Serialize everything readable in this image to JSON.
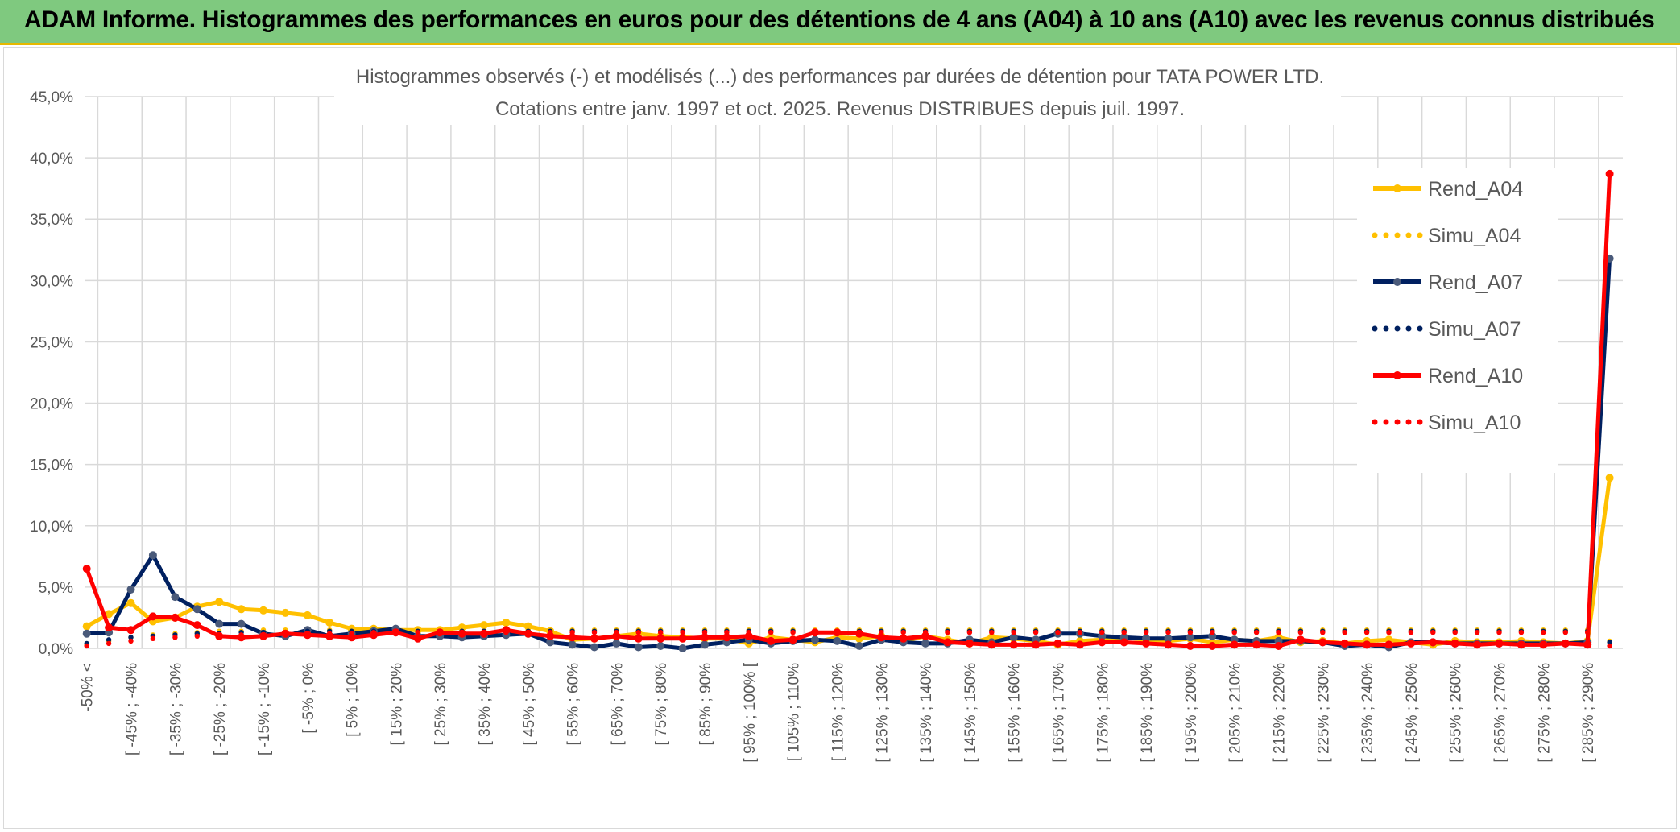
{
  "banner": {
    "title": "ADAM Informe. Histogrammes des performances en euros pour des détentions de 4 ans (A04) à 10 ans (A10) avec les revenus connus distribués"
  },
  "colors": {
    "banner_bg": "#7fc97f",
    "a04": "#ffc000",
    "a07": "#002060",
    "a10": "#ff0000",
    "a07_marker": "#4a5a7a",
    "grid": "#d9d9d9",
    "text": "#595959"
  },
  "chart_data": {
    "type": "line",
    "title": "Histogrammes observés (-) et modélisés (...) des performances par durées de détention pour TATA POWER LTD.",
    "subtitle": "Cotations entre janv. 1997 et oct. 2025. Revenus DISTRIBUES depuis juil. 1997.",
    "ylim": [
      0,
      45
    ],
    "yticks": [
      "0,0%",
      "5,0%",
      "10,0%",
      "15,0%",
      "20,0%",
      "25,0%",
      "30,0%",
      "35,0%",
      "40,0%",
      "45,0%"
    ],
    "xtick_labels": [
      "-50% <",
      "[ -45% ; -40%",
      "[ -35% ; -30%",
      "[ -25% ; -20%",
      "[ -15% ; -10%",
      "[ -5% ; 0%",
      "[ 5% ; 10%",
      "[ 15% ; 20%",
      "[ 25% ; 30%",
      "[ 35% ; 40%",
      "[ 45% ; 50%",
      "[ 55% ; 60%",
      "[ 65% ; 70%",
      "[ 75% ; 80%",
      "[ 85% ; 90%",
      "[ 95% ; 100% [",
      "[ 105% ; 110%",
      "[ 115% ; 120%",
      "[ 125% ; 130%",
      "[ 135% ; 140%",
      "[ 145% ; 150%",
      "[ 155% ; 160%",
      "[ 165% ; 170%",
      "[ 175% ; 180%",
      "[ 185% ; 190%",
      "[ 195% ; 200%",
      "[ 205% ; 210%",
      "[ 215% ; 220%",
      "[ 225% ; 230%",
      "[ 235% ; 240%",
      "[ 245% ; 250%",
      "[ 255% ; 260%",
      "[ 265% ; 270%",
      "[ 275% ; 280%",
      "[ 285% ; 290%"
    ],
    "n_categories": 70,
    "series": [
      {
        "name": "Rend_A04",
        "style": "solid",
        "color": "#ffc000",
        "values": [
          1.8,
          2.8,
          3.7,
          2.2,
          2.5,
          3.4,
          3.8,
          3.2,
          3.1,
          2.9,
          2.7,
          2.1,
          1.6,
          1.6,
          1.5,
          1.5,
          1.5,
          1.7,
          1.9,
          2.1,
          1.8,
          1.4,
          0.7,
          0.8,
          1.0,
          1.2,
          1.0,
          0.9,
          0.8,
          0.8,
          0.4,
          0.9,
          0.7,
          0.5,
          0.9,
          0.8,
          1.0,
          0.6,
          1.0,
          0.7,
          0.4,
          0.9,
          0.8,
          0.6,
          0.3,
          0.6,
          0.7,
          0.9,
          0.7,
          0.6,
          0.8,
          0.5,
          0.7,
          0.6,
          0.9,
          0.5,
          0.6,
          0.4,
          0.6,
          0.7,
          0.5,
          0.3,
          0.6,
          0.5,
          0.5,
          0.6,
          0.5,
          0.4,
          0.6,
          13.9
        ]
      },
      {
        "name": "Simu_A04",
        "style": "dotted",
        "color": "#ffc000",
        "values": [
          0.3,
          0.6,
          0.9,
          1.1,
          1.2,
          1.3,
          1.4,
          1.4,
          1.5,
          1.5,
          1.5,
          1.5,
          1.5,
          1.5,
          1.5,
          1.5,
          1.5,
          1.5,
          1.5,
          1.5,
          1.5,
          1.5,
          1.5,
          1.5,
          1.5,
          1.5,
          1.5,
          1.5,
          1.5,
          1.5,
          1.5,
          1.5,
          1.5,
          1.5,
          1.5,
          1.5,
          1.5,
          1.5,
          1.5,
          1.5,
          1.5,
          1.5,
          1.5,
          1.5,
          1.5,
          1.5,
          1.5,
          1.5,
          1.5,
          1.5,
          1.5,
          1.5,
          1.5,
          1.5,
          1.5,
          1.5,
          1.5,
          1.5,
          1.5,
          1.5,
          1.5,
          1.5,
          1.5,
          1.5,
          1.5,
          1.5,
          1.5,
          1.5,
          1.5,
          0.6
        ]
      },
      {
        "name": "Rend_A07",
        "style": "solid",
        "color": "#002060",
        "values": [
          1.2,
          1.3,
          4.8,
          7.6,
          4.2,
          3.2,
          2.0,
          2.0,
          1.2,
          1.0,
          1.5,
          1.0,
          1.2,
          1.4,
          1.6,
          1.0,
          1.0,
          0.9,
          1.0,
          1.1,
          1.2,
          0.5,
          0.3,
          0.1,
          0.4,
          0.1,
          0.2,
          0.0,
          0.3,
          0.5,
          0.7,
          0.4,
          0.6,
          0.7,
          0.6,
          0.2,
          0.7,
          0.5,
          0.4,
          0.4,
          0.7,
          0.5,
          0.9,
          0.7,
          1.2,
          1.2,
          1.0,
          0.9,
          0.8,
          0.8,
          0.9,
          1.0,
          0.7,
          0.6,
          0.6,
          0.6,
          0.5,
          0.2,
          0.3,
          0.1,
          0.5,
          0.5,
          0.4,
          0.4,
          0.4,
          0.4,
          0.4,
          0.4,
          0.5,
          31.8
        ]
      },
      {
        "name": "Simu_A07",
        "style": "dotted",
        "color": "#002060",
        "values": [
          0.4,
          0.7,
          0.9,
          1.0,
          1.1,
          1.2,
          1.2,
          1.3,
          1.3,
          1.3,
          1.4,
          1.4,
          1.4,
          1.4,
          1.4,
          1.4,
          1.4,
          1.4,
          1.4,
          1.4,
          1.4,
          1.4,
          1.4,
          1.4,
          1.4,
          1.4,
          1.4,
          1.4,
          1.4,
          1.4,
          1.4,
          1.4,
          1.4,
          1.4,
          1.4,
          1.4,
          1.4,
          1.4,
          1.4,
          1.4,
          1.4,
          1.4,
          1.4,
          1.4,
          1.4,
          1.4,
          1.4,
          1.4,
          1.4,
          1.4,
          1.4,
          1.4,
          1.4,
          1.4,
          1.4,
          1.4,
          1.4,
          1.4,
          1.4,
          1.4,
          1.4,
          1.4,
          1.4,
          1.4,
          1.4,
          1.4,
          1.4,
          1.4,
          1.4,
          0.5
        ]
      },
      {
        "name": "Rend_A10",
        "style": "solid",
        "color": "#ff0000",
        "values": [
          6.5,
          1.7,
          1.5,
          2.6,
          2.5,
          1.9,
          1.0,
          0.9,
          1.0,
          1.2,
          1.1,
          1.0,
          0.9,
          1.1,
          1.3,
          0.8,
          1.3,
          1.2,
          1.2,
          1.5,
          1.2,
          1.0,
          0.9,
          0.8,
          1.0,
          0.8,
          0.8,
          0.8,
          0.9,
          0.9,
          1.0,
          0.6,
          0.7,
          1.3,
          1.3,
          1.2,
          0.9,
          0.8,
          1.0,
          0.5,
          0.4,
          0.3,
          0.3,
          0.3,
          0.4,
          0.3,
          0.5,
          0.5,
          0.4,
          0.3,
          0.2,
          0.2,
          0.3,
          0.3,
          0.2,
          0.7,
          0.5,
          0.4,
          0.3,
          0.3,
          0.4,
          0.5,
          0.4,
          0.3,
          0.4,
          0.3,
          0.3,
          0.4,
          0.3,
          38.7
        ]
      },
      {
        "name": "Simu_A10",
        "style": "dotted",
        "color": "#ff0000",
        "values": [
          0.2,
          0.4,
          0.6,
          0.8,
          0.9,
          1.0,
          1.0,
          1.1,
          1.1,
          1.2,
          1.2,
          1.2,
          1.2,
          1.3,
          1.3,
          1.3,
          1.3,
          1.3,
          1.3,
          1.3,
          1.3,
          1.3,
          1.3,
          1.3,
          1.3,
          1.3,
          1.3,
          1.3,
          1.3,
          1.3,
          1.3,
          1.3,
          1.3,
          1.3,
          1.3,
          1.3,
          1.3,
          1.3,
          1.3,
          1.3,
          1.3,
          1.3,
          1.3,
          1.3,
          1.3,
          1.3,
          1.3,
          1.3,
          1.3,
          1.3,
          1.3,
          1.3,
          1.3,
          1.3,
          1.3,
          1.3,
          1.3,
          1.3,
          1.3,
          1.3,
          1.3,
          1.3,
          1.3,
          1.3,
          1.3,
          1.3,
          1.3,
          1.3,
          1.3,
          0.2
        ]
      }
    ],
    "legend_position": "right"
  }
}
